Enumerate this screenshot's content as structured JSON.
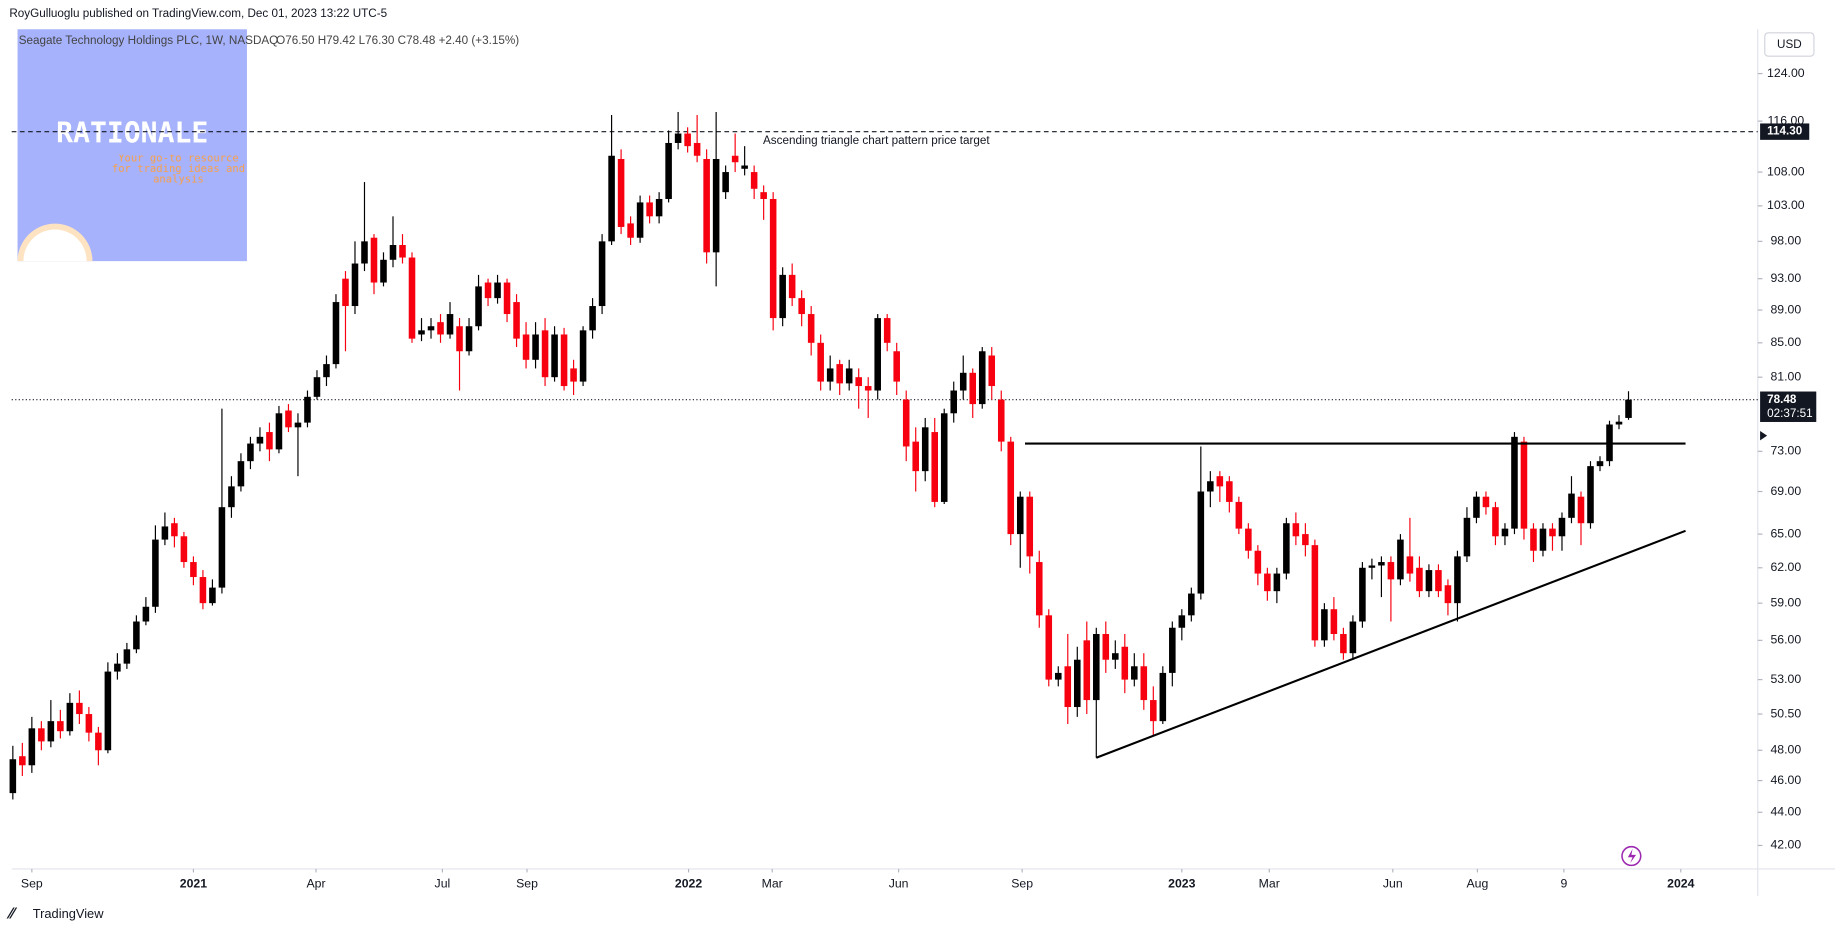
{
  "header": "RoyGulluoglu published on TradingView.com, Dec 01, 2023 13:22 UTC-5",
  "footer": "TradingView",
  "logo": {
    "title": "RATIONALE",
    "tagline": "Your go-to resource for trading ideas and analysis"
  },
  "chart_data": {
    "type": "candlestick",
    "title": "Seagate Technology Holdings PLC, 1W, NASDAQ",
    "ohlc_legend": "O76.50 H79.42 L76.30 C78.48 +2.40 (+3.15%)",
    "currency": "USD",
    "log_scale": true,
    "grid": false,
    "up_color": "#000000",
    "down_color": "#f7000f",
    "open": [
      45.2,
      47.6,
      47.0,
      49.5,
      48.6,
      50.0,
      49.3,
      51.3,
      50.5,
      49.2,
      48.0,
      53.6,
      54.2,
      55.3,
      57.5,
      58.7,
      64.5,
      66.0,
      64.8,
      62.5,
      61.2,
      59.0,
      60.3,
      67.5,
      69.5,
      72.0,
      73.8,
      75.0,
      73.2,
      77.3,
      75.5,
      76.0,
      78.8,
      81.0,
      82.5,
      93.0,
      89.5,
      95.0,
      98.5,
      92.5,
      95.5,
      97.5,
      95.8,
      86.0,
      86.5,
      87.5,
      86.0,
      87.0,
      84.0,
      87.0,
      92.5,
      90.5,
      92.5,
      90.0,
      86.0,
      83.0,
      86.5,
      81.0,
      86.0,
      82.0,
      80.5,
      86.5,
      89.5,
      98.0,
      110.0,
      100.5,
      98.5,
      103.5,
      101.5,
      104.0,
      112.5,
      114.0,
      112.5,
      110.0,
      96.5,
      105.0,
      110.5,
      108.5,
      108.0,
      105.0,
      104.0,
      88.0,
      93.5,
      90.5,
      88.5,
      85.0,
      80.5,
      82.5,
      80.3,
      81.0,
      80.0,
      79.5,
      88.0,
      84.0,
      78.5,
      74.0,
      71.0,
      75.0,
      68.0,
      77.0,
      79.5,
      81.5,
      78.0,
      83.5,
      78.5,
      74.0,
      65.0,
      68.5,
      62.5,
      58.0,
      53.0,
      54.0,
      51.0,
      56.0,
      51.5,
      56.5,
      54.5,
      55.5,
      53.0,
      54.0,
      51.5,
      50.0,
      53.5,
      57.0,
      58.0,
      59.8,
      69.0,
      70.5,
      70.0,
      68.0,
      65.5,
      63.5,
      61.5,
      60.0,
      61.5,
      66.0,
      65.0,
      64.0,
      56.0,
      58.5,
      56.5,
      55.0,
      57.5,
      62.0,
      62.2,
      62.5,
      61.0,
      63.0,
      62.0,
      60.0,
      61.8,
      60.5,
      59.0,
      63.0,
      66.5,
      68.5,
      67.5,
      64.8,
      65.5,
      74.0,
      65.5,
      63.5,
      65.5,
      64.8,
      66.5,
      68.5,
      66.0,
      71.5,
      72.0,
      75.8,
      76.5
    ],
    "high": [
      48.3,
      48.5,
      50.3,
      50.0,
      51.5,
      50.8,
      52.0,
      52.2,
      51.0,
      49.6,
      54.3,
      55.0,
      55.8,
      58.0,
      59.5,
      65.8,
      67.0,
      66.5,
      65.2,
      63.0,
      61.8,
      61.0,
      77.5,
      70.5,
      72.8,
      74.5,
      75.5,
      76.0,
      77.8,
      78.0,
      77.0,
      79.5,
      81.8,
      83.5,
      91.0,
      94.0,
      98.0,
      106.5,
      99.0,
      96.5,
      101.5,
      99.0,
      96.5,
      88.0,
      88.0,
      88.5,
      90.0,
      88.0,
      88.0,
      93.5,
      93.0,
      93.5,
      93.0,
      91.0,
      87.5,
      87.5,
      88.0,
      87.0,
      86.8,
      83.0,
      87.0,
      90.5,
      99.0,
      117.0,
      111.5,
      101.5,
      104.5,
      104.5,
      105.0,
      114.5,
      117.5,
      115.0,
      117.0,
      111.5,
      117.5,
      109.0,
      114.0,
      112.0,
      109.0,
      106.0,
      105.0,
      94.5,
      95.0,
      91.5,
      89.5,
      86.0,
      83.5,
      83.0,
      83.0,
      82.0,
      81.0,
      88.5,
      88.5,
      85.0,
      79.5,
      75.5,
      76.5,
      76.5,
      77.5,
      80.5,
      83.5,
      82.0,
      84.5,
      84.5,
      79.5,
      74.5,
      69.0,
      69.0,
      63.5,
      58.5,
      54.0,
      56.5,
      55.5,
      57.5,
      57.0,
      57.5,
      56.0,
      56.5,
      55.0,
      55.0,
      52.5,
      54.0,
      57.5,
      58.5,
      60.3,
      73.5,
      71.0,
      71.0,
      70.5,
      68.5,
      66.0,
      64.0,
      62.0,
      62.0,
      66.5,
      67.0,
      66.0,
      64.5,
      59.0,
      59.5,
      57.0,
      58.0,
      62.5,
      62.8,
      63.0,
      63.0,
      65.0,
      66.5,
      63.0,
      62.3,
      62.3,
      61.0,
      63.5,
      67.5,
      69.0,
      69.0,
      68.0,
      66.0,
      75.0,
      74.5,
      66.0,
      66.0,
      66.0,
      67.0,
      70.5,
      69.0,
      72.0,
      72.5,
      76.2,
      76.8,
      79.42
    ],
    "low": [
      44.8,
      46.3,
      46.5,
      48.0,
      48.2,
      48.8,
      49.0,
      49.8,
      48.6,
      47.0,
      47.8,
      53.0,
      53.8,
      55.0,
      57.2,
      58.2,
      64.0,
      63.8,
      62.0,
      60.5,
      58.5,
      58.8,
      59.8,
      66.5,
      69.0,
      71.2,
      73.0,
      72.0,
      72.8,
      75.0,
      70.5,
      75.5,
      78.5,
      80.0,
      82.0,
      84.0,
      88.5,
      94.0,
      91.0,
      92.0,
      94.5,
      95.0,
      85.0,
      85.2,
      85.5,
      85.0,
      85.5,
      79.5,
      83.5,
      86.5,
      89.5,
      89.8,
      87.5,
      84.5,
      82.0,
      82.0,
      80.0,
      80.5,
      79.5,
      79.0,
      80.0,
      85.5,
      88.5,
      97.5,
      99.0,
      97.5,
      97.8,
      100.5,
      100.5,
      103.5,
      111.5,
      111.0,
      109.5,
      95.0,
      92.0,
      104.0,
      108.0,
      107.5,
      104.0,
      101.0,
      86.5,
      87.0,
      89.5,
      87.0,
      83.5,
      79.5,
      79.5,
      79.0,
      79.5,
      77.5,
      76.5,
      78.5,
      84.0,
      79.0,
      72.0,
      69.0,
      70.0,
      67.5,
      67.8,
      76.0,
      78.5,
      76.5,
      77.5,
      78.5,
      73.0,
      64.0,
      62.0,
      61.5,
      57.0,
      52.5,
      52.5,
      49.8,
      50.3,
      50.5,
      47.5,
      53.5,
      53.8,
      52.0,
      52.5,
      50.8,
      49.0,
      49.8,
      52.5,
      56.0,
      57.5,
      59.3,
      67.5,
      68.0,
      67.0,
      65.0,
      62.8,
      60.5,
      59.2,
      59.0,
      61.0,
      64.0,
      63.0,
      55.5,
      55.5,
      56.0,
      54.5,
      54.5,
      57.0,
      61.0,
      59.5,
      57.5,
      60.5,
      60.8,
      59.5,
      59.5,
      59.5,
      58.0,
      57.5,
      62.5,
      66.0,
      66.8,
      64.0,
      64.0,
      65.0,
      64.5,
      62.5,
      63.0,
      63.5,
      63.5,
      66.0,
      64.0,
      65.5,
      71.0,
      71.5,
      75.3,
      76.3
    ],
    "close": [
      47.4,
      47.0,
      49.5,
      48.6,
      50.0,
      49.3,
      51.3,
      50.5,
      49.2,
      48.0,
      53.6,
      54.2,
      55.3,
      57.5,
      58.7,
      64.5,
      65.7,
      64.8,
      62.5,
      61.2,
      59.0,
      60.3,
      67.5,
      69.5,
      72.0,
      73.8,
      74.5,
      73.2,
      77.0,
      75.5,
      76.0,
      78.8,
      81.0,
      82.5,
      90.0,
      89.5,
      95.0,
      98.0,
      92.5,
      95.5,
      97.5,
      95.8,
      85.5,
      86.5,
      87.0,
      86.0,
      88.5,
      84.0,
      87.0,
      92.0,
      90.5,
      92.5,
      88.5,
      85.5,
      83.0,
      86.0,
      81.0,
      86.0,
      80.0,
      80.5,
      86.5,
      89.5,
      98.0,
      110.5,
      100.0,
      98.5,
      103.5,
      101.5,
      104.0,
      112.5,
      114.0,
      112.0,
      110.5,
      96.5,
      110.0,
      108.0,
      109.5,
      109.0,
      105.5,
      104.0,
      88.0,
      93.5,
      90.5,
      88.5,
      85.0,
      80.5,
      82.0,
      80.3,
      82.0,
      80.0,
      79.5,
      88.0,
      85.0,
      80.5,
      73.5,
      71.0,
      75.5,
      68.0,
      77.0,
      79.5,
      81.5,
      78.0,
      84.0,
      80.0,
      74.0,
      65.0,
      68.5,
      63.0,
      58.0,
      53.0,
      53.5,
      51.0,
      54.5,
      51.5,
      56.5,
      54.5,
      55.0,
      53.0,
      54.0,
      51.5,
      50.0,
      53.5,
      57.0,
      58.0,
      59.8,
      69.0,
      70.0,
      69.5,
      68.0,
      65.5,
      63.5,
      61.5,
      60.0,
      61.5,
      66.0,
      64.8,
      64.0,
      56.0,
      58.5,
      56.5,
      55.0,
      57.5,
      62.0,
      62.2,
      62.5,
      61.0,
      64.5,
      61.5,
      60.0,
      61.8,
      60.0,
      59.0,
      63.0,
      66.5,
      68.5,
      67.5,
      64.8,
      65.5,
      74.5,
      65.5,
      63.5,
      65.5,
      64.8,
      66.5,
      68.8,
      66.0,
      71.5,
      72.0,
      75.8,
      76.1,
      78.48
    ],
    "xlim": [
      -0.12,
      183.6
    ],
    "ylim": [
      40.64,
      131.3
    ],
    "xticks": [
      {
        "value": 2.0,
        "label": "Sep"
      },
      {
        "value": 19.0,
        "label": "2021"
      },
      {
        "value": 31.9,
        "label": "Apr"
      },
      {
        "value": 45.2,
        "label": "Jul"
      },
      {
        "value": 54.1,
        "label": "Sep"
      },
      {
        "value": 71.1,
        "label": "2022"
      },
      {
        "value": 79.9,
        "label": "Mar"
      },
      {
        "value": 93.2,
        "label": "Jun"
      },
      {
        "value": 106.2,
        "label": "Sep"
      },
      {
        "value": 123.0,
        "label": "2023"
      },
      {
        "value": 132.2,
        "label": "Mar"
      },
      {
        "value": 145.2,
        "label": "Jun"
      },
      {
        "value": 154.1,
        "label": "Aug"
      },
      {
        "value": 163.2,
        "label": "9"
      },
      {
        "value": 175.5,
        "label": "2024"
      }
    ],
    "yticks": [
      {
        "value": 42,
        "label": "42.00"
      },
      {
        "value": 44,
        "label": "44.00"
      },
      {
        "value": 46,
        "label": "46.00"
      },
      {
        "value": 48,
        "label": "48.00"
      },
      {
        "value": 50.5,
        "label": "50.50"
      },
      {
        "value": 53,
        "label": "53.00"
      },
      {
        "value": 56,
        "label": "56.00"
      },
      {
        "value": 59,
        "label": "59.00"
      },
      {
        "value": 62,
        "label": "62.00"
      },
      {
        "value": 65,
        "label": "65.00"
      },
      {
        "value": 69,
        "label": "69.00"
      },
      {
        "value": 73,
        "label": "73.00"
      },
      {
        "value": 81,
        "label": "81.00"
      },
      {
        "value": 85,
        "label": "85.00"
      },
      {
        "value": 89,
        "label": "89.00"
      },
      {
        "value": 93,
        "label": "93.00"
      },
      {
        "value": 98,
        "label": "98.00"
      },
      {
        "value": 103,
        "label": "103.00"
      },
      {
        "value": 108,
        "label": "108.00"
      },
      {
        "value": 116,
        "label": "116.00"
      },
      {
        "value": 124,
        "label": "124.00"
      }
    ],
    "last_price": 78.48,
    "countdown": "02:37:51",
    "price_target": {
      "value": 114.3,
      "label": "114.30",
      "annotation": "Ascending triangle chart pattern price target"
    },
    "trend_lines": [
      {
        "x": [
          106.5,
          176
        ],
        "y": [
          73.8,
          73.8
        ]
      },
      {
        "x": [
          114,
          176
        ],
        "y": [
          47.5,
          65.3
        ]
      }
    ]
  }
}
